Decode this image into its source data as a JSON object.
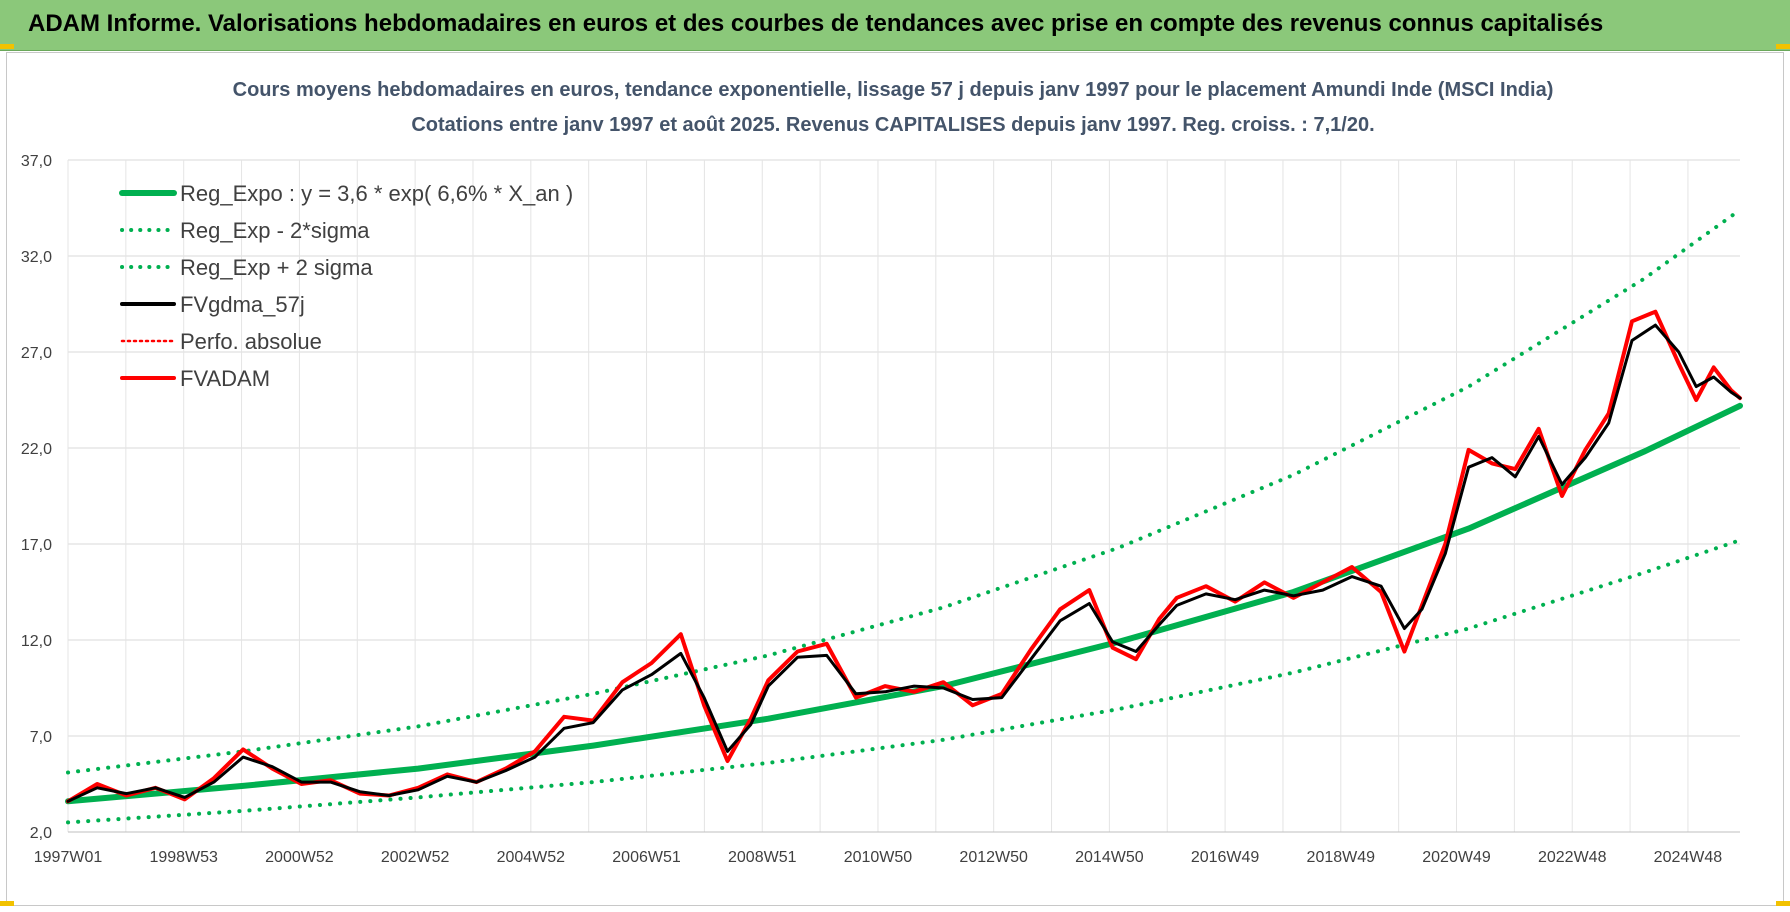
{
  "header": {
    "title": "ADAM Informe. Valorisations hebdomadaires en euros et des courbes de tendances avec prise en compte des revenus connus capitalisés"
  },
  "colors": {
    "banner": "#8bc87a",
    "regression": "#00b050",
    "bands": "#00b050",
    "smoothed": "#000000",
    "absolute": "#ff0000",
    "fvadam": "#ff0000"
  },
  "chart_data": {
    "type": "line",
    "title": "Cours moyens hebdomadaires en euros, tendance exponentielle, lissage 57 j depuis janv 1997 pour le placement Amundi Inde (MSCI India)",
    "subtitle": "Cotations entre janv 1997 et août 2025.  Revenus CAPITALISES depuis janv 1997. Reg. croiss. : 7,1/20.",
    "xlabel": "",
    "ylabel": "",
    "ylim": [
      2.0,
      37.0
    ],
    "xlim": [
      1997.0,
      2025.65
    ],
    "y_ticks": [
      "2,0",
      "7,0",
      "12,0",
      "17,0",
      "22,0",
      "27,0",
      "32,0",
      "37,0"
    ],
    "x_tick_labels": [
      "1997W01",
      "1998W53",
      "2000W52",
      "2002W52",
      "2004W52",
      "2006W51",
      "2008W51",
      "2010W50",
      "2012W50",
      "2014W50",
      "2016W49",
      "2018W49",
      "2020W49",
      "2022W48",
      "2024W48"
    ],
    "grid": true,
    "legend_position": "top-left",
    "legend": [
      {
        "label": "Reg_Expo : y = 3,6 * exp( 6,6% *  X_an )",
        "style": "solid",
        "color": "#00b050"
      },
      {
        "label": "Reg_Exp - 2*sigma",
        "style": "dotted",
        "color": "#00b050"
      },
      {
        "label": "Reg_Exp + 2 sigma",
        "style": "dotted",
        "color": "#00b050"
      },
      {
        "label": "FVgdma_57j",
        "style": "solid",
        "color": "#000000"
      },
      {
        "label": "Perfo. absolue",
        "style": "dotted",
        "color": "#ff0000"
      },
      {
        "label": "FVADAM",
        "style": "solid",
        "color": "#ff0000"
      }
    ],
    "series": [
      {
        "name": "Reg_Expo : y = 3,6 * exp( 6,6% *  X_an )",
        "x": [
          1997.0,
          2000.0,
          2003.0,
          2006.0,
          2009.0,
          2012.0,
          2015.0,
          2018.0,
          2021.0,
          2024.0,
          2025.65
        ],
        "y": [
          3.6,
          4.4,
          5.3,
          6.5,
          7.9,
          9.6,
          11.9,
          14.5,
          17.8,
          21.8,
          24.2
        ]
      },
      {
        "name": "Reg_Exp - 2*sigma",
        "x": [
          1997.0,
          2000.0,
          2003.0,
          2006.0,
          2009.0,
          2012.0,
          2015.0,
          2018.0,
          2021.0,
          2024.0,
          2025.65
        ],
        "y": [
          2.5,
          3.1,
          3.8,
          4.6,
          5.6,
          6.8,
          8.4,
          10.3,
          12.6,
          15.5,
          17.2
        ]
      },
      {
        "name": "Reg_Exp + 2 sigma",
        "x": [
          1997.0,
          2000.0,
          2003.0,
          2006.0,
          2009.0,
          2012.0,
          2015.0,
          2018.0,
          2021.0,
          2024.0,
          2025.65
        ],
        "y": [
          5.1,
          6.2,
          7.5,
          9.2,
          11.2,
          13.7,
          16.8,
          20.6,
          25.2,
          30.8,
          34.4
        ]
      },
      {
        "name": "FVgdma_57j",
        "x": [
          1997.0,
          1997.5,
          1998.0,
          1998.5,
          1999.0,
          1999.5,
          2000.0,
          2000.5,
          2001.0,
          2001.5,
          2002.0,
          2002.5,
          2003.0,
          2003.5,
          2004.0,
          2004.5,
          2005.0,
          2005.5,
          2006.0,
          2006.5,
          2007.0,
          2007.5,
          2007.9,
          2008.3,
          2008.7,
          2009.0,
          2009.5,
          2010.0,
          2010.5,
          2011.0,
          2011.5,
          2012.0,
          2012.5,
          2013.0,
          2013.5,
          2014.0,
          2014.5,
          2014.9,
          2015.3,
          2015.7,
          2016.0,
          2016.5,
          2017.0,
          2017.5,
          2018.0,
          2018.5,
          2019.0,
          2019.5,
          2019.9,
          2020.2,
          2020.6,
          2021.0,
          2021.4,
          2021.8,
          2022.2,
          2022.6,
          2023.0,
          2023.4,
          2023.8,
          2024.2,
          2024.6,
          2024.9,
          2025.2,
          2025.5,
          2025.65
        ],
        "y": [
          3.6,
          4.3,
          4.0,
          4.3,
          3.8,
          4.6,
          5.9,
          5.4,
          4.6,
          4.6,
          4.1,
          3.9,
          4.2,
          4.9,
          4.6,
          5.2,
          5.9,
          7.4,
          7.7,
          9.4,
          10.2,
          11.3,
          9.0,
          6.2,
          7.6,
          9.6,
          11.1,
          11.2,
          9.2,
          9.3,
          9.6,
          9.5,
          8.9,
          9.0,
          11.0,
          13.0,
          13.9,
          11.9,
          11.4,
          12.8,
          13.8,
          14.4,
          14.1,
          14.6,
          14.3,
          14.6,
          15.3,
          14.8,
          12.6,
          13.6,
          16.5,
          21.0,
          21.5,
          20.5,
          22.6,
          20.1,
          21.5,
          23.3,
          27.6,
          28.4,
          27.0,
          25.2,
          25.7,
          24.9,
          24.6
        ]
      },
      {
        "name": "Perfo. absolue",
        "x": [
          1997.0,
          1997.5,
          1998.0,
          1998.5,
          1999.0,
          1999.5,
          2000.0,
          2000.5,
          2001.0,
          2001.5,
          2002.0,
          2002.5,
          2003.0,
          2003.5,
          2004.0,
          2004.5,
          2005.0,
          2005.5,
          2006.0,
          2006.5,
          2007.0,
          2007.5,
          2007.9,
          2008.3,
          2008.7,
          2009.0,
          2009.5,
          2010.0,
          2010.5,
          2011.0,
          2011.5,
          2012.0,
          2012.5,
          2013.0,
          2013.5,
          2014.0,
          2014.5,
          2014.9,
          2015.3,
          2015.7,
          2016.0,
          2016.5,
          2017.0,
          2017.5,
          2018.0,
          2018.5,
          2019.0,
          2019.5,
          2019.9,
          2020.2,
          2020.6,
          2021.0,
          2021.4,
          2021.8,
          2022.2,
          2022.6,
          2023.0,
          2023.4,
          2023.8,
          2024.2,
          2024.6,
          2024.9,
          2025.2,
          2025.5,
          2025.65
        ],
        "y": [
          3.6,
          4.5,
          3.9,
          4.3,
          3.7,
          4.8,
          6.3,
          5.3,
          4.5,
          4.7,
          4.0,
          3.9,
          4.3,
          5.0,
          4.6,
          5.3,
          6.2,
          8.0,
          7.8,
          9.8,
          10.8,
          12.3,
          8.6,
          5.7,
          7.9,
          9.9,
          11.4,
          11.8,
          9.0,
          9.6,
          9.3,
          9.8,
          8.6,
          9.2,
          11.5,
          13.6,
          14.6,
          11.6,
          11.0,
          13.1,
          14.2,
          14.8,
          14.0,
          15.0,
          14.2,
          15.0,
          15.8,
          14.5,
          11.4,
          13.8,
          17.0,
          21.9,
          21.2,
          20.9,
          23.0,
          19.5,
          21.9,
          23.8,
          28.6,
          29.1,
          26.4,
          24.5,
          26.2,
          25.0,
          24.6
        ]
      },
      {
        "name": "FVADAM",
        "x": [
          1997.0,
          1997.5,
          1998.0,
          1998.5,
          1999.0,
          1999.5,
          2000.0,
          2000.5,
          2001.0,
          2001.5,
          2002.0,
          2002.5,
          2003.0,
          2003.5,
          2004.0,
          2004.5,
          2005.0,
          2005.5,
          2006.0,
          2006.5,
          2007.0,
          2007.5,
          2007.9,
          2008.3,
          2008.7,
          2009.0,
          2009.5,
          2010.0,
          2010.5,
          2011.0,
          2011.5,
          2012.0,
          2012.5,
          2013.0,
          2013.5,
          2014.0,
          2014.5,
          2014.9,
          2015.3,
          2015.7,
          2016.0,
          2016.5,
          2017.0,
          2017.5,
          2018.0,
          2018.5,
          2019.0,
          2019.5,
          2019.9,
          2020.2,
          2020.6,
          2021.0,
          2021.4,
          2021.8,
          2022.2,
          2022.6,
          2023.0,
          2023.4,
          2023.8,
          2024.2,
          2024.6,
          2024.9,
          2025.2,
          2025.5,
          2025.65
        ],
        "y": [
          3.6,
          4.5,
          3.9,
          4.3,
          3.7,
          4.8,
          6.3,
          5.3,
          4.5,
          4.7,
          4.0,
          3.9,
          4.3,
          5.0,
          4.6,
          5.3,
          6.2,
          8.0,
          7.8,
          9.8,
          10.8,
          12.3,
          8.6,
          5.7,
          7.9,
          9.9,
          11.4,
          11.8,
          9.0,
          9.6,
          9.3,
          9.8,
          8.6,
          9.2,
          11.5,
          13.6,
          14.6,
          11.6,
          11.0,
          13.1,
          14.2,
          14.8,
          14.0,
          15.0,
          14.2,
          15.0,
          15.8,
          14.5,
          11.4,
          13.8,
          17.0,
          21.9,
          21.2,
          20.9,
          23.0,
          19.5,
          21.9,
          23.8,
          28.6,
          29.1,
          26.4,
          24.5,
          26.2,
          25.0,
          24.6
        ]
      }
    ]
  }
}
